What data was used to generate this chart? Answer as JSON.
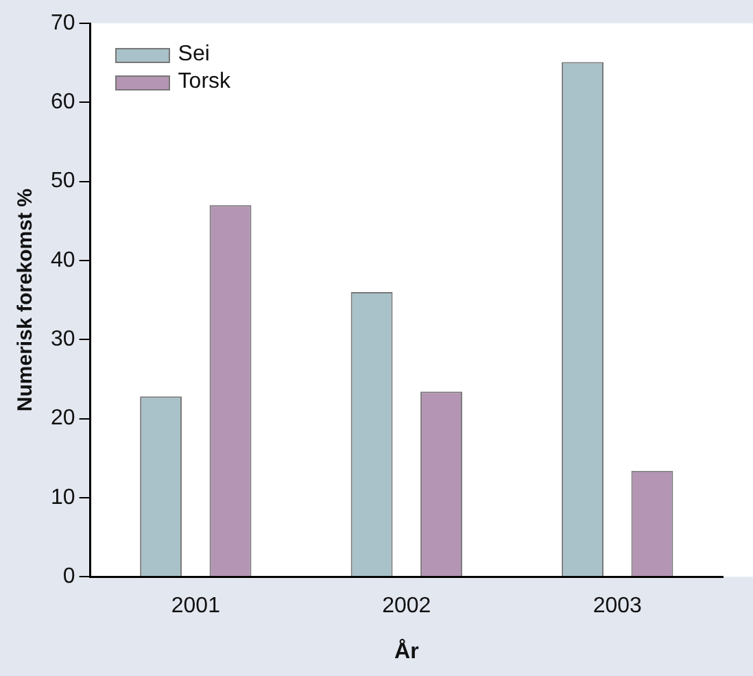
{
  "chart_data": {
    "type": "bar",
    "categories": [
      "2001",
      "2002",
      "2003"
    ],
    "series": [
      {
        "name": "Sei",
        "color": "#a9c1c8",
        "values": [
          22.8,
          36.0,
          65.1
        ]
      },
      {
        "name": "Torsk",
        "color": "#b495b4",
        "values": [
          47.0,
          23.4,
          13.4
        ]
      }
    ],
    "xlabel": "År",
    "ylabel": "Numerisk forekomst %",
    "ylim": [
      0,
      70
    ],
    "yticks": [
      0,
      10,
      20,
      30,
      40,
      50,
      60,
      70
    ],
    "grid": false,
    "legend": "top left"
  }
}
